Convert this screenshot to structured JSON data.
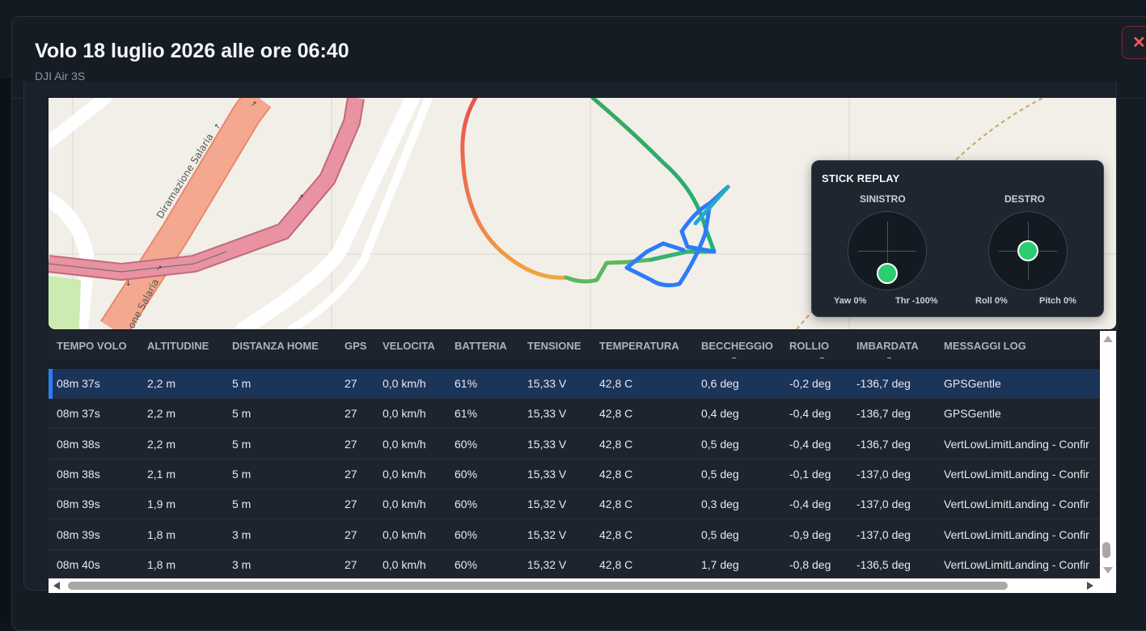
{
  "modal": {
    "title": "Volo 18 luglio 2026 alle ore 06:40",
    "subtitle": "DJI Air 3S",
    "close_icon": "close-icon"
  },
  "map": {
    "labels": [
      "Diramazione Salaria",
      "one Salaria"
    ],
    "route_colors": [
      "#e8534a",
      "#f2a63a",
      "#5cb85c",
      "#2ea84f",
      "#2d7cf6"
    ]
  },
  "stick_replay": {
    "title": "STICK REPLAY",
    "left": {
      "label": "SINISTRO",
      "yaw": "Yaw 0%",
      "thr": "Thr -100%"
    },
    "right": {
      "label": "DESTRO",
      "roll": "Roll 0%",
      "pitch": "Pitch 0%"
    },
    "accent": "#2ecc71"
  },
  "table": {
    "columns": [
      "TEMPO VOLO",
      "ALTITUDINE",
      "DISTANZA HOME",
      "GPS",
      "VELOCITA",
      "BATTERIA",
      "TENSIONE",
      "TEMPERATURA",
      "BECCHEGGIO",
      "ROLLIO",
      "IMBARDATA",
      "MESSAGGI LOG"
    ],
    "rows": [
      [
        "08m 37s",
        "2,2 m",
        "5 m",
        "27",
        "0,0 km/h",
        "61%",
        "15,33 V",
        "42,8 C",
        "0,6 deg",
        "-0,2 deg",
        "-136,7 deg",
        "GPSGentle"
      ],
      [
        "08m 37s",
        "2,2 m",
        "5 m",
        "27",
        "0,0 km/h",
        "61%",
        "15,33 V",
        "42,8 C",
        "0,4 deg",
        "-0,4 deg",
        "-136,7 deg",
        "GPSGentle"
      ],
      [
        "08m 38s",
        "2,2 m",
        "5 m",
        "27",
        "0,0 km/h",
        "60%",
        "15,33 V",
        "42,8 C",
        "0,5 deg",
        "-0,4 deg",
        "-136,7 deg",
        "VertLowLimitLanding - Confir"
      ],
      [
        "08m 38s",
        "2,1 m",
        "5 m",
        "27",
        "0,0 km/h",
        "60%",
        "15,33 V",
        "42,8 C",
        "0,5 deg",
        "-0,1 deg",
        "-137,0 deg",
        "VertLowLimitLanding - Confir"
      ],
      [
        "08m 39s",
        "1,9 m",
        "5 m",
        "27",
        "0,0 km/h",
        "60%",
        "15,32 V",
        "42,8 C",
        "0,3 deg",
        "-0,4 deg",
        "-137,0 deg",
        "VertLowLimitLanding - Confir"
      ],
      [
        "08m 39s",
        "1,8 m",
        "3 m",
        "27",
        "0,0 km/h",
        "60%",
        "15,32 V",
        "42,8 C",
        "0,5 deg",
        "-0,9 deg",
        "-137,0 deg",
        "VertLowLimitLanding - Confir"
      ],
      [
        "08m 40s",
        "1,8 m",
        "3 m",
        "27",
        "0,0 km/h",
        "60%",
        "15,32 V",
        "42,8 C",
        "1,7 deg",
        "-0,8 deg",
        "-136,5 deg",
        "VertLowLimitLanding - Confir"
      ]
    ],
    "selected_row": 0,
    "selected_color": "#1b3459"
  }
}
